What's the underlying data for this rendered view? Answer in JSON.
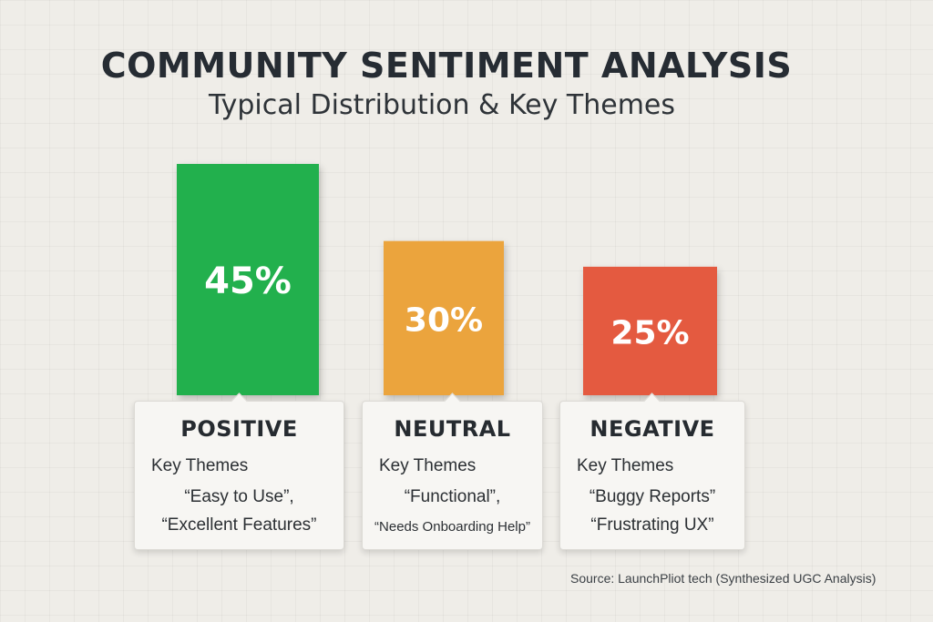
{
  "title": "COMMUNITY SENTIMENT ANALYSIS",
  "subtitle": "Typical Distribution & Key Themes",
  "colors": {
    "positive": "#23b04e",
    "neutral": "#eba43e",
    "negative": "#e45a3f"
  },
  "chart_data": {
    "type": "bar",
    "title": "COMMUNITY SENTIMENT ANALYSIS",
    "subtitle": "Typical Distribution & Key Themes",
    "categories": [
      "POSITIVE",
      "NEUTRAL",
      "NEGATIVE"
    ],
    "values": [
      45,
      30,
      25
    ],
    "data_labels": [
      "45%",
      "30%",
      "25%"
    ],
    "unit": "%",
    "ylim": [
      0,
      50
    ],
    "grid": true,
    "legend": "none"
  },
  "cards": [
    {
      "title": "POSITIVE",
      "themes_label": "Key Themes",
      "themes": [
        "“Easy to Use”,",
        "“Excellent Features”"
      ]
    },
    {
      "title": "NEUTRAL",
      "themes_label": "Key Themes",
      "themes": [
        "“Functional”,",
        "“Needs Onboarding Help”"
      ]
    },
    {
      "title": "NEGATIVE",
      "themes_label": "Key Themes",
      "themes": [
        "“Buggy Reports”",
        "“Frustrating UX”"
      ]
    }
  ],
  "source": "Source: LaunchPliot tech (Synthesized UGC Analysis)"
}
